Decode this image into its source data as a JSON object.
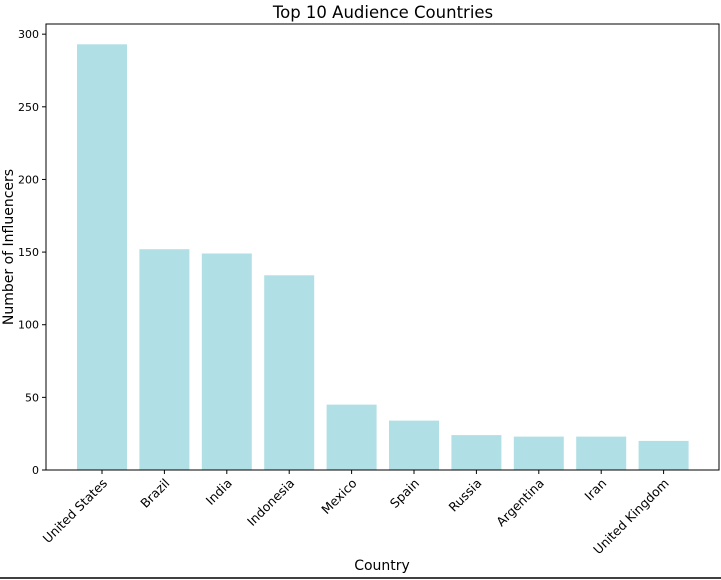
{
  "chart_data": {
    "type": "bar",
    "title": "Top 10 Audience Countries",
    "xlabel": "Country",
    "ylabel": "Number of Influencers",
    "categories": [
      "United States",
      "Brazil",
      "India",
      "Indonesia",
      "Mexico",
      "Spain",
      "Russia",
      "Argentina",
      "Iran",
      "United Kingdom"
    ],
    "values": [
      293,
      152,
      149,
      134,
      45,
      34,
      24,
      23,
      23,
      20
    ],
    "ylim": [
      0,
      307
    ],
    "yticks": [
      0,
      50,
      100,
      150,
      200,
      250,
      300
    ],
    "bar_color": "#b0dfe5",
    "grid": false,
    "legend": "none"
  }
}
